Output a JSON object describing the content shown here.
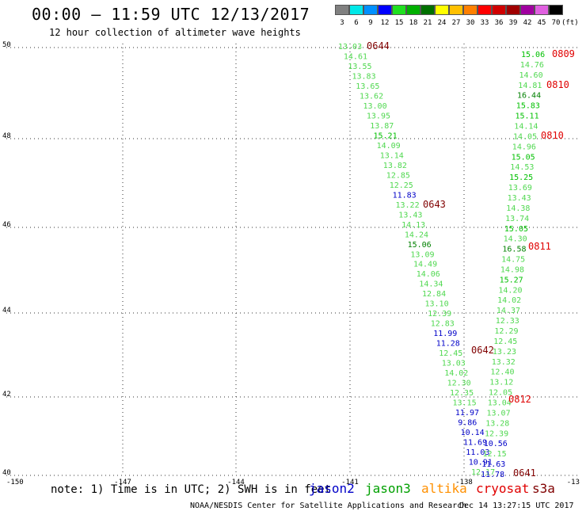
{
  "header": {
    "title": "00:00 – 11:59 UTC 12/13/2017",
    "subtitle": "12 hour collection of altimeter wave heights"
  },
  "legend": {
    "unit": "(ft)",
    "items": [
      {
        "label": "3",
        "color": "#808080"
      },
      {
        "label": "6",
        "color": "#00e8e8"
      },
      {
        "label": "9",
        "color": "#0090ff"
      },
      {
        "label": "12",
        "color": "#0000ff"
      },
      {
        "label": "15",
        "color": "#20e020"
      },
      {
        "label": "18",
        "color": "#00b000"
      },
      {
        "label": "21",
        "color": "#007000"
      },
      {
        "label": "24",
        "color": "#ffff00"
      },
      {
        "label": "27",
        "color": "#ffc000"
      },
      {
        "label": "30",
        "color": "#ff8000"
      },
      {
        "label": "33",
        "color": "#ff0000"
      },
      {
        "label": "36",
        "color": "#d00000"
      },
      {
        "label": "39",
        "color": "#a00000"
      },
      {
        "label": "42",
        "color": "#a000a0"
      },
      {
        "label": "45",
        "color": "#e060e0"
      },
      {
        "label": "70",
        "color": "#000000"
      }
    ]
  },
  "map": {
    "lon_labels": [
      "-150",
      "-147",
      "-144",
      "-141",
      "-138",
      "-13"
    ],
    "lat_labels": [
      "50",
      "48",
      "46",
      "44",
      "42",
      "40"
    ],
    "colors": {
      "light": "#50d850",
      "mid": "#00c000",
      "dark": "#008000",
      "blue": "#0000c8",
      "red": "#e00000",
      "maroon": "#800000"
    },
    "passes": [
      {
        "time": "0644",
        "color": "maroon"
      },
      {
        "time": "0643",
        "color": "maroon"
      },
      {
        "time": "0642",
        "color": "maroon"
      },
      {
        "time": "0641",
        "color": "maroon"
      },
      {
        "time": "0809",
        "color": "red"
      },
      {
        "time": "0810",
        "color": "red"
      },
      {
        "time": "0810",
        "color": "red"
      },
      {
        "time": "0811",
        "color": "red"
      },
      {
        "time": "0812",
        "color": "red"
      }
    ],
    "track1": [
      {
        "v": "13.03",
        "c": "light"
      },
      {
        "v": "14.61",
        "c": "light"
      },
      {
        "v": "13.55",
        "c": "light"
      },
      {
        "v": "13.83",
        "c": "light"
      },
      {
        "v": "13.65",
        "c": "light"
      },
      {
        "v": "13.62",
        "c": "light"
      },
      {
        "v": "13.00",
        "c": "light"
      },
      {
        "v": "13.95",
        "c": "light"
      },
      {
        "v": "13.87",
        "c": "light"
      },
      {
        "v": "15.21",
        "c": "mid"
      },
      {
        "v": "14.09",
        "c": "light"
      },
      {
        "v": "13.14",
        "c": "light"
      },
      {
        "v": "13.82",
        "c": "light"
      },
      {
        "v": "12.85",
        "c": "light"
      },
      {
        "v": "12.25",
        "c": "light"
      },
      {
        "v": "11.83",
        "c": "blue"
      },
      {
        "v": "13.22",
        "c": "light"
      },
      {
        "v": "13.43",
        "c": "light"
      },
      {
        "v": "14.13",
        "c": "light"
      },
      {
        "v": "14.24",
        "c": "light"
      },
      {
        "v": "15.06",
        "c": "dark"
      },
      {
        "v": "13.09",
        "c": "light"
      },
      {
        "v": "14.49",
        "c": "light"
      },
      {
        "v": "14.06",
        "c": "light"
      },
      {
        "v": "14.34",
        "c": "light"
      },
      {
        "v": "12.84",
        "c": "light"
      },
      {
        "v": "13.10",
        "c": "light"
      },
      {
        "v": "12.39",
        "c": "light"
      },
      {
        "v": "12.83",
        "c": "light"
      },
      {
        "v": "11.99",
        "c": "blue"
      },
      {
        "v": "11.28",
        "c": "blue"
      },
      {
        "v": "12.45",
        "c": "light"
      },
      {
        "v": "13.03",
        "c": "light"
      },
      {
        "v": "14.02",
        "c": "light"
      },
      {
        "v": "12.30",
        "c": "light"
      },
      {
        "v": "12.35",
        "c": "light"
      },
      {
        "v": "13.15",
        "c": "light"
      },
      {
        "v": "11.97",
        "c": "blue"
      },
      {
        "v": "9.86",
        "c": "blue"
      },
      {
        "v": "10.14",
        "c": "blue"
      },
      {
        "v": "11.69",
        "c": "blue"
      },
      {
        "v": "11.03",
        "c": "blue"
      },
      {
        "v": "10.91",
        "c": "blue"
      },
      {
        "v": "12.17",
        "c": "light"
      }
    ],
    "track2": [
      {
        "v": "15.06",
        "c": "mid"
      },
      {
        "v": "14.76",
        "c": "light"
      },
      {
        "v": "14.60",
        "c": "light"
      },
      {
        "v": "14.81",
        "c": "light"
      },
      {
        "v": "16.44",
        "c": "dark"
      },
      {
        "v": "15.83",
        "c": "mid"
      },
      {
        "v": "15.11",
        "c": "mid"
      },
      {
        "v": "14.14",
        "c": "light"
      },
      {
        "v": "14.05",
        "c": "light"
      },
      {
        "v": "14.96",
        "c": "light"
      },
      {
        "v": "15.05",
        "c": "mid"
      },
      {
        "v": "14.53",
        "c": "light"
      },
      {
        "v": "15.25",
        "c": "mid"
      },
      {
        "v": "13.69",
        "c": "light"
      },
      {
        "v": "13.43",
        "c": "light"
      },
      {
        "v": "14.38",
        "c": "light"
      },
      {
        "v": "13.74",
        "c": "light"
      },
      {
        "v": "15.05",
        "c": "mid"
      },
      {
        "v": "14.30",
        "c": "light"
      },
      {
        "v": "16.58",
        "c": "dark"
      },
      {
        "v": "14.75",
        "c": "light"
      },
      {
        "v": "14.98",
        "c": "light"
      },
      {
        "v": "15.27",
        "c": "mid"
      },
      {
        "v": "14.20",
        "c": "light"
      },
      {
        "v": "14.02",
        "c": "light"
      },
      {
        "v": "14.37",
        "c": "light"
      },
      {
        "v": "12.33",
        "c": "light"
      },
      {
        "v": "12.29",
        "c": "light"
      },
      {
        "v": "12.45",
        "c": "light"
      },
      {
        "v": "13.23",
        "c": "light"
      },
      {
        "v": "13.32",
        "c": "light"
      },
      {
        "v": "12.40",
        "c": "light"
      },
      {
        "v": "13.12",
        "c": "light"
      },
      {
        "v": "12.05",
        "c": "light"
      },
      {
        "v": "13.04",
        "c": "light"
      },
      {
        "v": "13.07",
        "c": "light"
      },
      {
        "v": "13.28",
        "c": "light"
      },
      {
        "v": "12.39",
        "c": "light"
      },
      {
        "v": "10.56",
        "c": "blue"
      },
      {
        "v": "12.15",
        "c": "light"
      },
      {
        "v": "11.63",
        "c": "blue"
      },
      {
        "v": "11.78",
        "c": "blue"
      }
    ]
  },
  "notes": {
    "note_text": "note: 1) Time is in UTC; 2) SWH is in feet",
    "satellites": [
      {
        "name": "jason2",
        "color": "#0000c8"
      },
      {
        "name": "jason3",
        "color": "#00a000"
      },
      {
        "name": "altika",
        "color": "#ff9000"
      },
      {
        "name": "cryosat",
        "color": "#e00000"
      },
      {
        "name": "s3a",
        "color": "#800000"
      }
    ]
  },
  "footer": {
    "center": "NOAA/NESDIS Center for Satellite Applications and Research",
    "timestamp": "Dec 14 13:27:15 UTC 2017"
  }
}
